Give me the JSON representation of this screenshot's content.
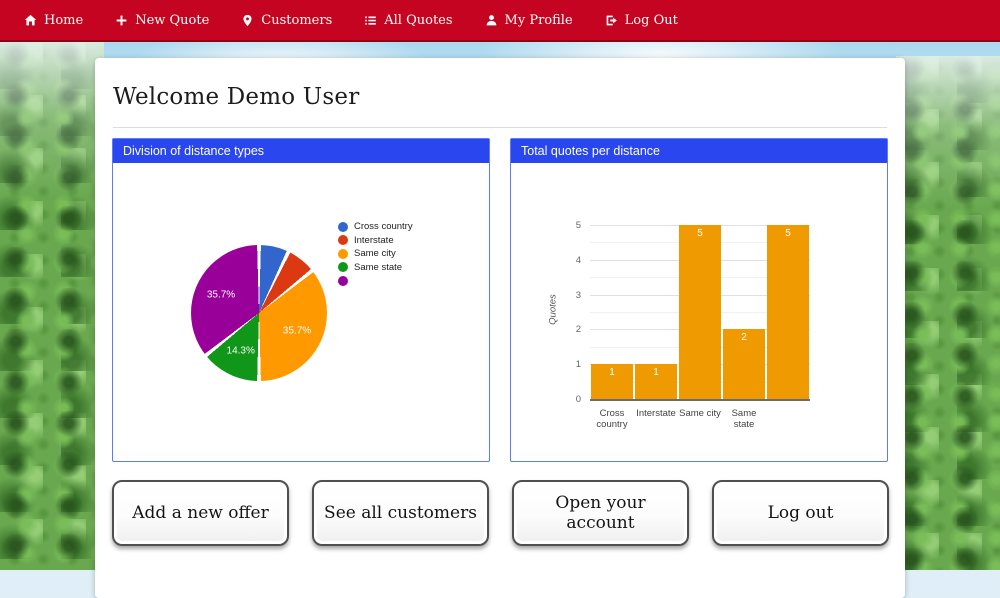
{
  "navbar": {
    "items": [
      {
        "label": "Home",
        "icon": "home-icon"
      },
      {
        "label": "New Quote",
        "icon": "plus-icon"
      },
      {
        "label": "Customers",
        "icon": "map-marker-icon"
      },
      {
        "label": "All Quotes",
        "icon": "list-icon"
      },
      {
        "label": "My Profile",
        "icon": "user-icon"
      },
      {
        "label": "Log Out",
        "icon": "sign-out-icon"
      }
    ]
  },
  "page": {
    "welcome_title": "Welcome Demo User"
  },
  "panels": [
    {
      "title": "Division of distance types"
    },
    {
      "title": "Total quotes per distance"
    }
  ],
  "chart_data": [
    {
      "type": "pie",
      "title": "Division of distance types",
      "labels": [
        "Cross country",
        "Interstate",
        "Same city",
        "Same state",
        ""
      ],
      "values": [
        1,
        1,
        5,
        2,
        5
      ],
      "percents": [
        7.1,
        7.1,
        35.7,
        14.3,
        35.7
      ],
      "percent_labels": [
        "",
        "",
        "35.7%",
        "14.3%",
        "35.7%"
      ],
      "colors": [
        "#3366cc",
        "#dc3912",
        "#ff9900",
        "#109618",
        "#990099"
      ],
      "legend_position": "right"
    },
    {
      "type": "bar",
      "title": "Total quotes per distance",
      "categories": [
        "Cross country",
        "Interstate",
        "Same city",
        "Same state",
        ""
      ],
      "values": [
        1,
        1,
        5,
        2,
        5
      ],
      "value_labels": [
        "1",
        "1",
        "5",
        "2",
        "5"
      ],
      "ylabel": "Quotes",
      "ylim": [
        0,
        5
      ],
      "yticks": [
        0,
        1,
        2,
        3,
        4,
        5
      ],
      "bar_color": "#ee9a00",
      "grid": true
    }
  ],
  "buttons": [
    {
      "label": "Add a new offer"
    },
    {
      "label": "See all customers"
    },
    {
      "label": "Open your account"
    },
    {
      "label": "Log out"
    }
  ],
  "colors": {
    "navbar_red": "#c40420",
    "navbar_border": "#8e0213",
    "panel_header_blue": "#2946ef",
    "panel_border_blue": "#5b7cfa",
    "bar_orange": "#ee9a00"
  }
}
